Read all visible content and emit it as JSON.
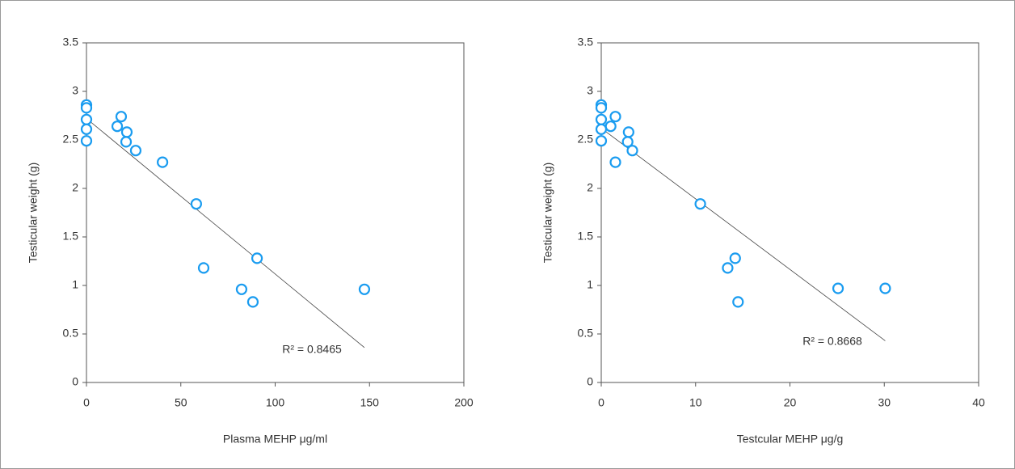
{
  "chart_data": [
    {
      "type": "scatter",
      "x_label": "Plasma MEHP μg/ml",
      "y_label": "Testicular weight (g)",
      "x": [
        0,
        0,
        0,
        0,
        0,
        16.3,
        18.4,
        21.4,
        21,
        26.1,
        40.3,
        58.2,
        62.1,
        82.2,
        88.2,
        90.4,
        147.3
      ],
      "values": [
        2.86,
        2.83,
        2.71,
        2.61,
        2.49,
        2.64,
        2.74,
        2.58,
        2.48,
        2.39,
        2.27,
        1.84,
        1.18,
        0.96,
        0.83,
        1.28,
        0.96
      ],
      "color": "#1a9cf0",
      "trendline": {
        "x": [
          0,
          147.3
        ],
        "y": [
          2.72,
          0.36
        ]
      },
      "annotation": "R² = 0.8465",
      "xlim": [
        0,
        200
      ],
      "xticks": [
        0,
        50,
        100,
        150,
        200
      ],
      "ylim": [
        0,
        3.5
      ],
      "yticks": [
        0,
        0.5,
        1,
        1.5,
        2,
        2.5,
        3,
        3.5
      ]
    },
    {
      "type": "scatter",
      "x_label": "Testcular MEHP μg/g",
      "y_label": "Testicular weight (g)",
      "x": [
        0,
        0,
        0,
        0,
        0,
        1.0,
        1.5,
        2.9,
        2.8,
        3.3,
        1.5,
        10.5,
        13.4,
        14.2,
        14.5,
        25.1,
        30.1
      ],
      "values": [
        2.86,
        2.83,
        2.71,
        2.61,
        2.49,
        2.64,
        2.74,
        2.58,
        2.48,
        2.39,
        2.27,
        1.84,
        1.18,
        1.28,
        0.83,
        0.97,
        0.97
      ],
      "color": "#1a9cf0",
      "trendline": {
        "x": [
          0,
          30.1
        ],
        "y": [
          2.62,
          0.43
        ]
      },
      "annotation": "R² = 0.8668",
      "xlim": [
        0,
        40
      ],
      "xticks": [
        0,
        10,
        20,
        30,
        40
      ],
      "ylim": [
        0,
        3.5
      ],
      "yticks": [
        0,
        0.5,
        1,
        1.5,
        2,
        2.5,
        3,
        3.5
      ]
    }
  ]
}
